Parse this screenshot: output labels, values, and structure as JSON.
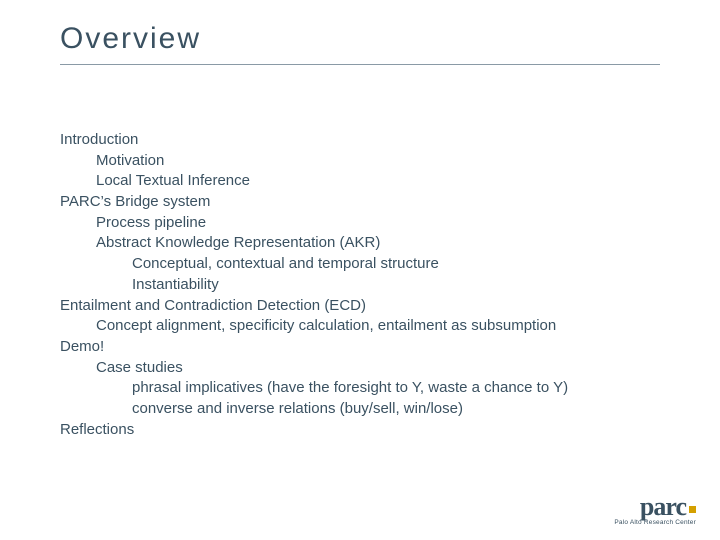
{
  "title": "Overview",
  "colors": {
    "text": "#3a5161",
    "rule": "#8a9aa6",
    "background": "#ffffff",
    "logo_accent": "#d4a000"
  },
  "typography": {
    "title_fontsize": 30,
    "title_letter_spacing": 2,
    "body_fontsize": 15,
    "body_line_height": 1.38,
    "font_family": "Arial, Helvetica, sans-serif"
  },
  "outline": [
    {
      "level": 0,
      "text": "Introduction"
    },
    {
      "level": 1,
      "text": "Motivation"
    },
    {
      "level": 1,
      "text": "Local Textual Inference"
    },
    {
      "level": 0,
      "text": "PARC’s Bridge system"
    },
    {
      "level": 1,
      "text": "Process pipeline"
    },
    {
      "level": 1,
      "text": "Abstract Knowledge Representation (AKR)"
    },
    {
      "level": 2,
      "text": "Conceptual, contextual and temporal structure"
    },
    {
      "level": 2,
      "text": "Instantiability"
    },
    {
      "level": 0,
      "text": "Entailment and Contradiction Detection (ECD)"
    },
    {
      "level": 1,
      "text": "Concept alignment, specificity calculation, entailment as subsumption"
    },
    {
      "level": 0,
      "text": "Demo!"
    },
    {
      "level": 1,
      "text": "Case studies"
    },
    {
      "level": 2,
      "text": "phrasal implicatives (have the foresight to Y, waste a chance to Y)"
    },
    {
      "level": 2,
      "text": "converse and inverse relations (buy/sell, win/lose)"
    },
    {
      "level": 0,
      "text": "Reflections"
    }
  ],
  "logo": {
    "main": "parc",
    "sub": "Palo Alto Research Center"
  }
}
